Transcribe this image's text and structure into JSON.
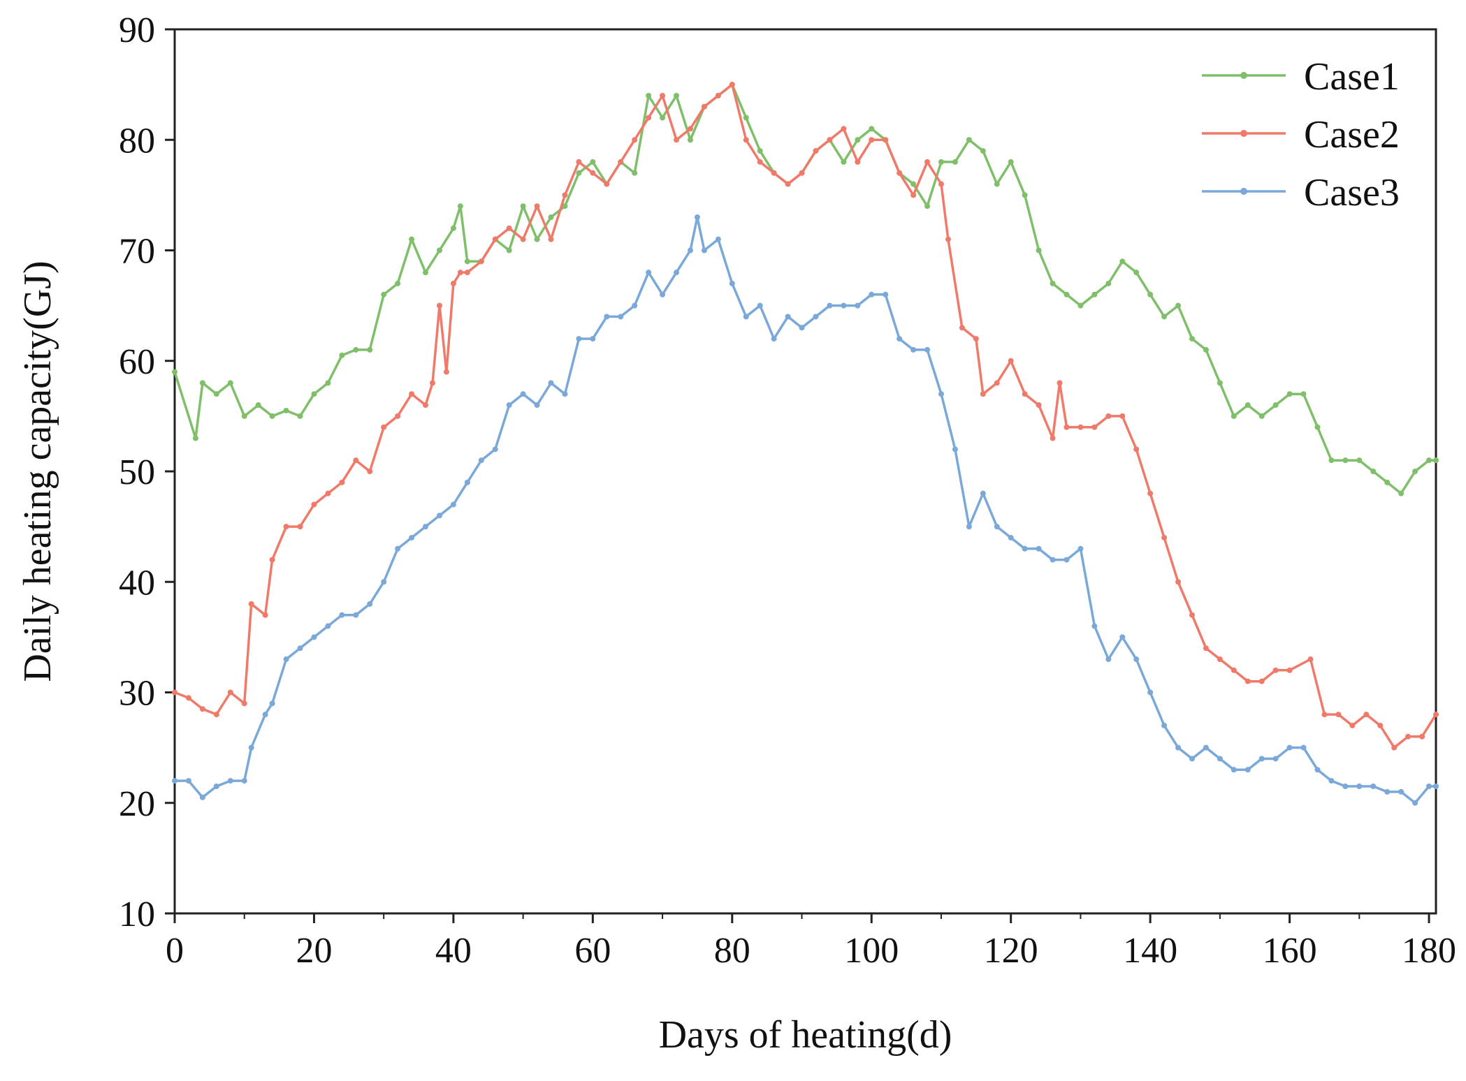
{
  "chart_data": {
    "type": "line",
    "title": "",
    "xlabel": "Days of heating(d)",
    "ylabel": "Daily heating capacity(GJ)",
    "xlim": [
      0,
      181
    ],
    "ylim": [
      10,
      90
    ],
    "xticks": [
      0,
      20,
      40,
      60,
      80,
      100,
      120,
      140,
      160,
      180
    ],
    "yticks": [
      10,
      20,
      30,
      40,
      50,
      60,
      70,
      80,
      90
    ],
    "grid": false,
    "legend_position": "top-right",
    "series": [
      {
        "name": "Case1",
        "color": "#7fbf6a",
        "x": [
          0,
          3,
          4,
          6,
          8,
          10,
          12,
          14,
          16,
          18,
          20,
          22,
          24,
          26,
          28,
          30,
          32,
          34,
          36,
          38,
          40,
          41,
          42,
          44,
          46,
          48,
          50,
          52,
          54,
          56,
          58,
          60,
          62,
          64,
          66,
          68,
          70,
          72,
          74,
          76,
          78,
          80,
          82,
          84,
          86,
          88,
          90,
          92,
          94,
          96,
          98,
          100,
          102,
          104,
          106,
          108,
          110,
          112,
          114,
          116,
          118,
          120,
          122,
          124,
          126,
          128,
          130,
          132,
          134,
          136,
          138,
          140,
          142,
          144,
          146,
          148,
          150,
          152,
          154,
          156,
          158,
          160,
          162,
          164,
          166,
          168,
          170,
          172,
          174,
          176,
          178,
          180,
          181
        ],
        "values": [
          59,
          53,
          58,
          57,
          58,
          55,
          56,
          55,
          55.5,
          55,
          57,
          58,
          60.5,
          61,
          61,
          66,
          67,
          71,
          68,
          70,
          72,
          74,
          69,
          69,
          71,
          70,
          74,
          71,
          73,
          74,
          77,
          78,
          76,
          78,
          77,
          84,
          82,
          84,
          80,
          83,
          84,
          85,
          82,
          79,
          77,
          76,
          77,
          79,
          80,
          78,
          80,
          81,
          80,
          77,
          76,
          74,
          78,
          78,
          80,
          79,
          76,
          78,
          75,
          70,
          67,
          66,
          65,
          66,
          67,
          69,
          68,
          66,
          64,
          65,
          62,
          61,
          58,
          55,
          56,
          55,
          56,
          57,
          57,
          54,
          51,
          51,
          51,
          50,
          49,
          48,
          50,
          51,
          51
        ]
      },
      {
        "name": "Case2",
        "color": "#f07a6a",
        "x": [
          0,
          2,
          4,
          6,
          8,
          10,
          11,
          13,
          14,
          16,
          18,
          20,
          22,
          24,
          26,
          28,
          30,
          32,
          34,
          36,
          37,
          38,
          39,
          40,
          41,
          42,
          44,
          46,
          48,
          50,
          52,
          54,
          56,
          58,
          60,
          62,
          64,
          66,
          68,
          70,
          72,
          74,
          76,
          78,
          80,
          82,
          84,
          86,
          88,
          90,
          92,
          94,
          96,
          98,
          100,
          102,
          104,
          106,
          108,
          110,
          111,
          113,
          115,
          116,
          118,
          120,
          122,
          124,
          126,
          127,
          128,
          130,
          132,
          134,
          136,
          138,
          140,
          142,
          144,
          146,
          148,
          150,
          152,
          154,
          156,
          158,
          160,
          163,
          165,
          167,
          169,
          171,
          173,
          175,
          177,
          179,
          181
        ],
        "values": [
          30,
          29.5,
          28.5,
          28,
          30,
          29,
          38,
          37,
          42,
          45,
          45,
          47,
          48,
          49,
          51,
          50,
          54,
          55,
          57,
          56,
          58,
          65,
          59,
          67,
          68,
          68,
          69,
          71,
          72,
          71,
          74,
          71,
          75,
          78,
          77,
          76,
          78,
          80,
          82,
          84,
          80,
          81,
          83,
          84,
          85,
          80,
          78,
          77,
          76,
          77,
          79,
          80,
          81,
          78,
          80,
          80,
          77,
          75,
          78,
          76,
          71,
          63,
          62,
          57,
          58,
          60,
          57,
          56,
          53,
          58,
          54,
          54,
          54,
          55,
          55,
          52,
          48,
          44,
          40,
          37,
          34,
          33,
          32,
          31,
          31,
          32,
          32,
          33,
          28,
          28,
          27,
          28,
          27,
          25,
          26,
          26,
          28
        ]
      },
      {
        "name": "Case3",
        "color": "#7aa8d8",
        "x": [
          0,
          2,
          4,
          6,
          8,
          10,
          11,
          13,
          14,
          16,
          18,
          20,
          22,
          24,
          26,
          28,
          30,
          32,
          34,
          36,
          38,
          40,
          42,
          44,
          46,
          48,
          50,
          52,
          54,
          56,
          58,
          60,
          62,
          64,
          66,
          68,
          70,
          72,
          74,
          75,
          76,
          78,
          80,
          82,
          84,
          86,
          88,
          90,
          92,
          94,
          96,
          98,
          100,
          102,
          104,
          106,
          108,
          110,
          112,
          114,
          116,
          118,
          120,
          122,
          124,
          126,
          128,
          130,
          132,
          134,
          136,
          138,
          140,
          142,
          144,
          146,
          148,
          150,
          152,
          154,
          156,
          158,
          160,
          162,
          164,
          166,
          168,
          170,
          172,
          174,
          176,
          178,
          180,
          181
        ],
        "values": [
          22,
          22,
          20.5,
          21.5,
          22,
          22,
          25,
          28,
          29,
          33,
          34,
          35,
          36,
          37,
          37,
          38,
          40,
          43,
          44,
          45,
          46,
          47,
          49,
          51,
          52,
          56,
          57,
          56,
          58,
          57,
          62,
          62,
          64,
          64,
          65,
          68,
          66,
          68,
          70,
          73,
          70,
          71,
          67,
          64,
          65,
          62,
          64,
          63,
          64,
          65,
          65,
          65,
          66,
          66,
          62,
          61,
          61,
          57,
          52,
          45,
          48,
          45,
          44,
          43,
          43,
          42,
          42,
          43,
          36,
          33,
          35,
          33,
          30,
          27,
          25,
          24,
          25,
          24,
          23,
          23,
          24,
          24,
          25,
          25,
          23,
          22,
          21.5,
          21.5,
          21.5,
          21,
          21,
          20,
          21.5,
          21.5
        ]
      }
    ]
  }
}
